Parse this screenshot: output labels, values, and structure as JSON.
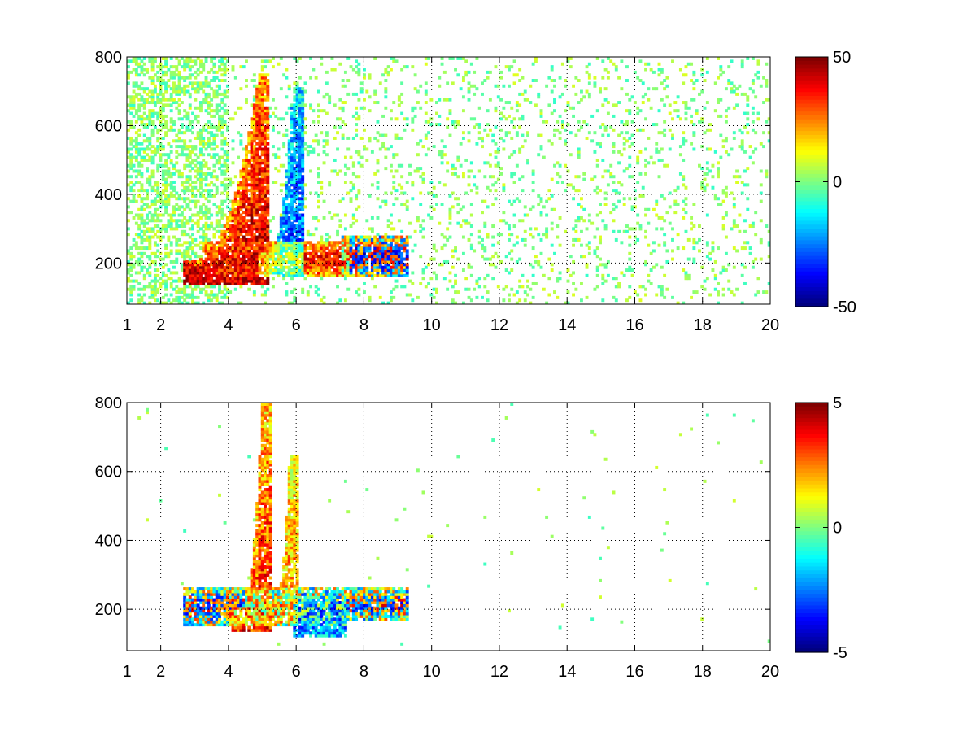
{
  "chart_data": [
    {
      "type": "heatmap",
      "title": "",
      "xlabel": "",
      "ylabel": "",
      "xlim": [
        1,
        20
      ],
      "ylim": [
        80,
        800
      ],
      "xticks": [
        1,
        2,
        4,
        6,
        8,
        10,
        12,
        14,
        16,
        18,
        20
      ],
      "yticks": [
        200,
        400,
        600,
        800
      ],
      "grid": true,
      "colormap": "jet",
      "colorbar": {
        "range": [
          -50,
          50
        ],
        "ticks": [
          50,
          0,
          -50
        ]
      },
      "colors": {
        "low": "#00008f",
        "mid": "#7fff7f",
        "high": "#800000"
      },
      "features": [
        {
          "x": [
            3.0,
            4.9
          ],
          "y_start": 180,
          "y_end": 720,
          "sign": "positive",
          "magnitude": 0.9,
          "description": "curved red ridge rising from x=3 to x=4.9"
        },
        {
          "x": [
            5.2,
            5.9
          ],
          "y_start": 200,
          "y_end": 680,
          "sign": "negative",
          "magnitude": 0.6,
          "description": "cyan/blue ridge"
        },
        {
          "x": [
            3.5,
            7.3
          ],
          "y_band": [
            160,
            260
          ],
          "sign": "positive",
          "magnitude": 0.8,
          "description": "horizontal band near y=200"
        },
        {
          "x": [
            7.6,
            9.0
          ],
          "y_band": [
            160,
            280
          ],
          "sign": "mixed",
          "magnitude": 0.7,
          "description": "cluster near x=8"
        }
      ]
    },
    {
      "type": "heatmap",
      "title": "",
      "xlabel": "",
      "ylabel": "",
      "xlim": [
        1,
        20
      ],
      "ylim": [
        80,
        800
      ],
      "xticks": [
        1,
        2,
        4,
        6,
        8,
        10,
        12,
        14,
        16,
        18,
        20
      ],
      "yticks": [
        200,
        400,
        600,
        800
      ],
      "grid": true,
      "colormap": "jet",
      "colorbar": {
        "range": [
          -5,
          5
        ],
        "ticks": [
          5,
          0,
          -5
        ]
      },
      "colors": {
        "low": "#00008f",
        "mid": "#7fff7f",
        "high": "#800000"
      },
      "features": [
        {
          "x": [
            4.4,
            5.0
          ],
          "y_start": 180,
          "y_end": 780,
          "sign": "positive",
          "magnitude": 0.7,
          "description": "yellow/red ridge"
        },
        {
          "x": [
            5.4,
            5.8
          ],
          "y_start": 200,
          "y_end": 620,
          "sign": "positive",
          "magnitude": 0.5,
          "description": "second yellow ridge"
        },
        {
          "x": [
            3.0,
            7.2
          ],
          "y_band": [
            150,
            260
          ],
          "sign": "mixed",
          "magnitude": 0.6,
          "description": "band near y=200"
        },
        {
          "x": [
            6.2,
            7.2
          ],
          "y_band": [
            120,
            240
          ],
          "sign": "negative",
          "magnitude": 0.7,
          "description": "blue cluster"
        },
        {
          "x": [
            7.6,
            9.0
          ],
          "y_band": [
            170,
            260
          ],
          "sign": "mixed",
          "magnitude": 0.6,
          "description": "cluster near x=8"
        }
      ]
    }
  ]
}
